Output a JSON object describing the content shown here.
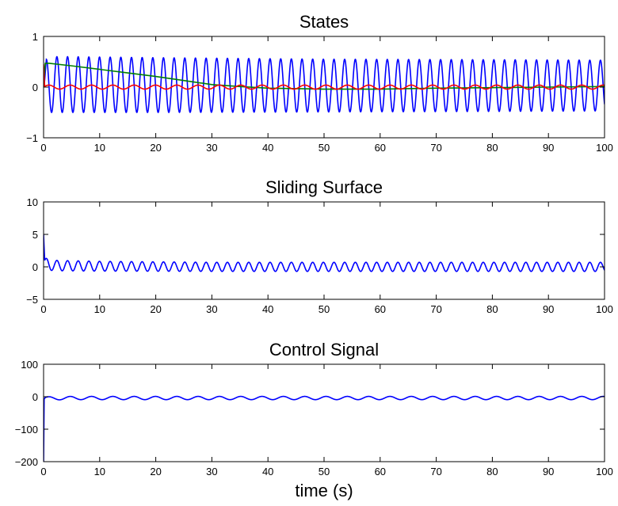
{
  "chart_data": [
    {
      "type": "line",
      "title": "States",
      "xlabel": "",
      "ylabel": "",
      "xlim": [
        0,
        100
      ],
      "ylim": [
        -1,
        1
      ],
      "x_ticks": [
        "0",
        "10",
        "20",
        "30",
        "40",
        "50",
        "60",
        "70",
        "80",
        "90",
        "100"
      ],
      "y_ticks": [
        "-1",
        "0",
        "1"
      ],
      "grid": false,
      "series": [
        {
          "color": "#0000ff",
          "kind": "oscillation",
          "x": [
            0,
            0.5,
            1,
            2,
            5,
            20,
            50,
            80,
            100
          ],
          "center": [
            0,
            0.05,
            0.05,
            0.05,
            0.05,
            0.04,
            0.03,
            0.03,
            0.03
          ],
          "amplitude": [
            0,
            0.5,
            0.55,
            0.55,
            0.55,
            0.54,
            0.52,
            0.51,
            0.5
          ],
          "period": 1.9
        },
        {
          "color": "#008000",
          "kind": "path",
          "x": [
            0,
            0.3,
            1,
            5,
            10,
            15,
            20,
            25,
            30,
            35,
            40,
            50,
            60,
            70,
            80,
            90,
            100
          ],
          "y": [
            0.0,
            0.47,
            0.47,
            0.42,
            0.35,
            0.28,
            0.21,
            0.13,
            0.05,
            0.01,
            -0.02,
            -0.04,
            -0.04,
            -0.02,
            -0.01,
            0.0,
            0.01
          ]
        },
        {
          "color": "#ff0000",
          "kind": "oscillation",
          "x": [
            0,
            0.2,
            1,
            10,
            30,
            60,
            100
          ],
          "center": [
            0.45,
            0.0,
            0.0,
            0.0,
            0.0,
            0.0,
            0.0
          ],
          "amplitude": [
            0,
            0.04,
            0.04,
            0.04,
            0.04,
            0.04,
            0.04
          ],
          "period": 3.8
        }
      ]
    },
    {
      "type": "line",
      "title": "Sliding Surface",
      "xlabel": "",
      "ylabel": "",
      "xlim": [
        0,
        100
      ],
      "ylim": [
        -5,
        10
      ],
      "x_ticks": [
        "0",
        "10",
        "20",
        "30",
        "40",
        "50",
        "60",
        "70",
        "80",
        "90",
        "100"
      ],
      "y_ticks": [
        "-5",
        "0",
        "5",
        "10"
      ],
      "grid": false,
      "series": [
        {
          "color": "#0000ff",
          "kind": "oscillation",
          "x": [
            0,
            0.2,
            0.8,
            2,
            10,
            30,
            60,
            100
          ],
          "center": [
            5.0,
            0.5,
            0.4,
            0.2,
            0.1,
            0.0,
            0.0,
            0.0
          ],
          "amplitude": [
            0,
            0.8,
            0.9,
            0.8,
            0.75,
            0.7,
            0.7,
            0.7
          ],
          "period": 1.9
        }
      ]
    },
    {
      "type": "line",
      "title": "Control Signal",
      "xlabel": "time (s)",
      "ylabel": "",
      "xlim": [
        0,
        100
      ],
      "ylim": [
        -200,
        100
      ],
      "x_ticks": [
        "0",
        "10",
        "20",
        "30",
        "40",
        "50",
        "60",
        "70",
        "80",
        "90",
        "100"
      ],
      "y_ticks": [
        "-200",
        "-100",
        "0",
        "100"
      ],
      "grid": false,
      "series": [
        {
          "color": "#0000ff",
          "kind": "oscillation",
          "x": [
            0,
            0.1,
            0.3,
            1,
            5,
            30,
            100
          ],
          "center": [
            -200,
            -8,
            -5,
            -5,
            -4,
            -4,
            -4
          ],
          "amplitude": [
            0,
            4,
            5,
            5,
            5,
            5,
            5
          ],
          "period": 3.8
        }
      ]
    }
  ]
}
